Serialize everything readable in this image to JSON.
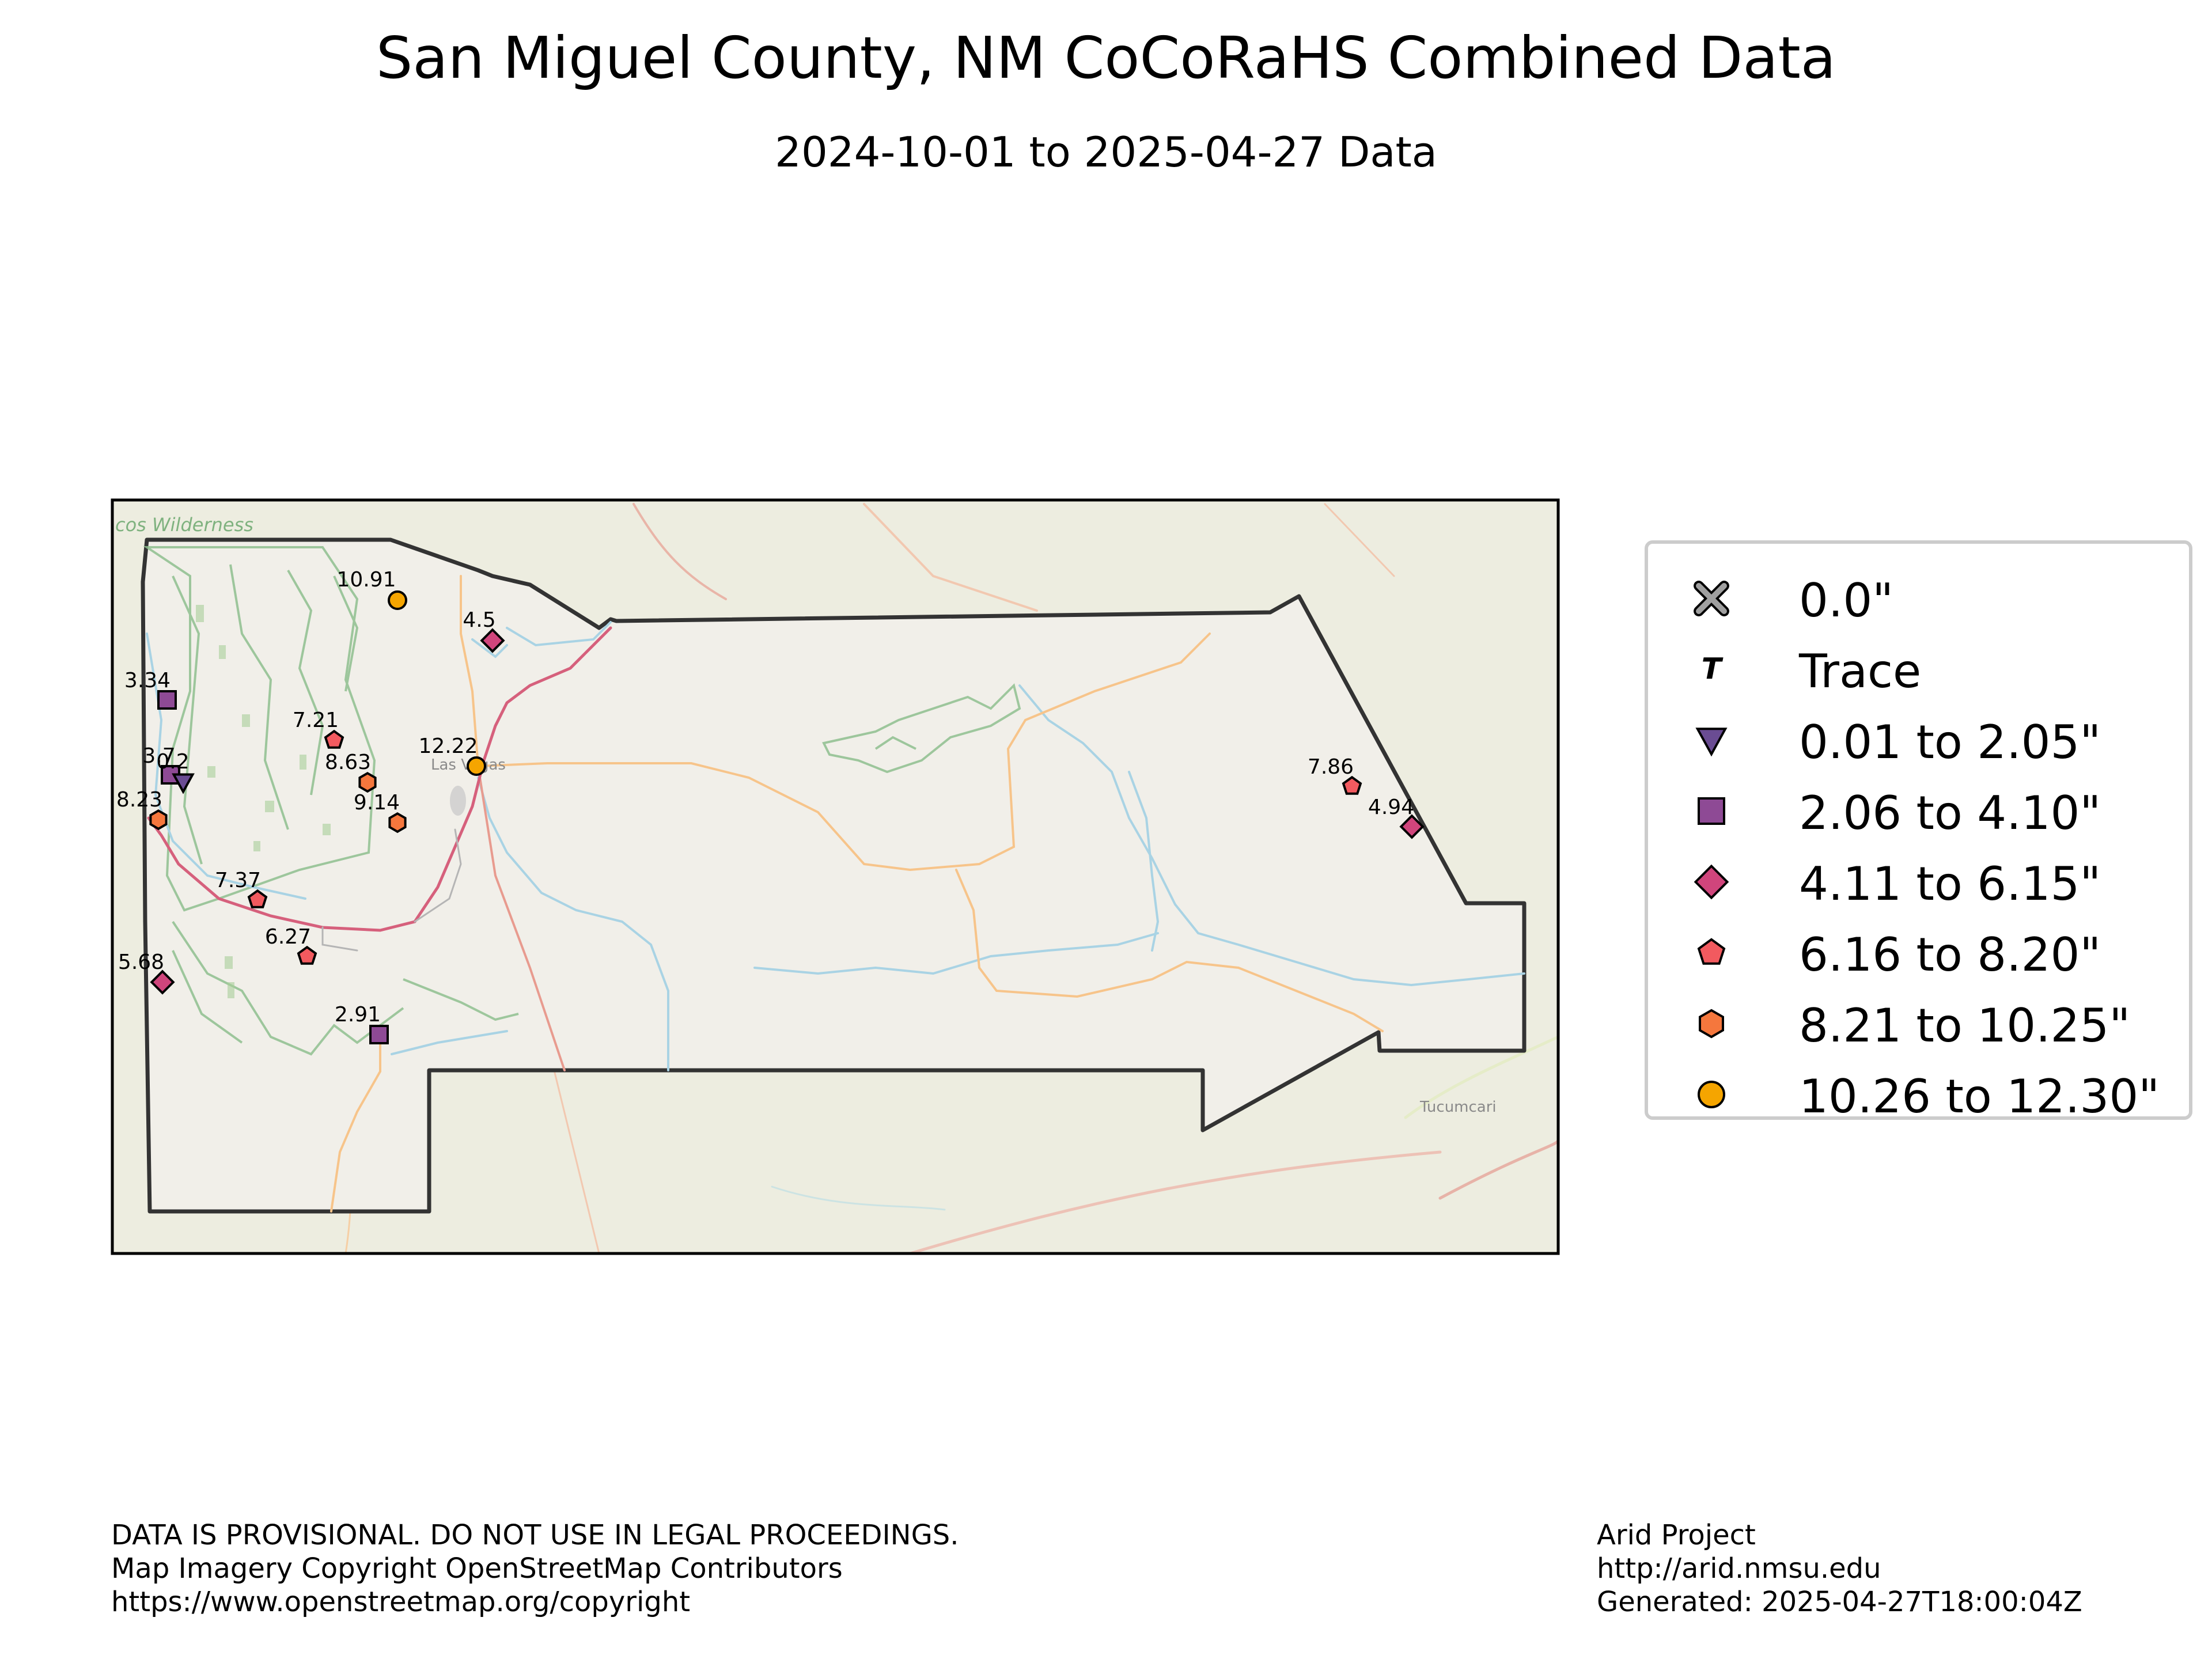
{
  "header": {
    "title": "San Miguel County, NM CoCoRaHS Combined Data",
    "subtitle": "2024-10-01 to 2025-04-27 Data"
  },
  "map": {
    "base_labels": {
      "wilderness": "cos Wilderness",
      "city": "Las Vegas",
      "town": "Tucumcari"
    },
    "colors": {
      "background": "#edede0",
      "county_fill": "#f1efe9",
      "county_border": "#333333",
      "forest": "#8fc08f",
      "water": "#a9d3e4",
      "road_minor": "#f7c48a",
      "road_major": "#e89b8f",
      "interstate": "#d6607c"
    }
  },
  "legend": {
    "items": [
      {
        "label": "0.0\"",
        "shape": "x-icon",
        "color": "#a0a0a0"
      },
      {
        "label": "Trace",
        "shape": "trace-t-icon",
        "color": "#000000"
      },
      {
        "label": "0.01 to 2.05\"",
        "shape": "triangle-down-icon",
        "color": "#6a4c93"
      },
      {
        "label": "2.06 to 4.10\"",
        "shape": "square-icon",
        "color": "#8e4a95"
      },
      {
        "label": "4.11 to 6.15\"",
        "shape": "diamond-icon",
        "color": "#d0457c"
      },
      {
        "label": "6.16 to 8.20\"",
        "shape": "pentagon-icon",
        "color": "#f25a5f"
      },
      {
        "label": "8.21 to 10.25\"",
        "shape": "hexagon-icon",
        "color": "#f5773d"
      },
      {
        "label": "10.26 to 12.30\"",
        "shape": "circle-icon",
        "color": "#f5a500"
      }
    ]
  },
  "stations": [
    {
      "value": "10.91",
      "category": 7
    },
    {
      "value": "4.5",
      "category": 4
    },
    {
      "value": "3.34",
      "category": 3
    },
    {
      "value": "7.21",
      "category": 5
    },
    {
      "value": "12.22",
      "category": 7
    },
    {
      "value": "8.63",
      "category": 6
    },
    {
      "value": "3.7",
      "category": 3
    },
    {
      "value": "0.2",
      "category": 2
    },
    {
      "value": "8.23",
      "category": 6
    },
    {
      "value": "9.14",
      "category": 6
    },
    {
      "value": "7.37",
      "category": 5
    },
    {
      "value": "6.27",
      "category": 5
    },
    {
      "value": "5.68",
      "category": 4
    },
    {
      "value": "2.91",
      "category": 3
    },
    {
      "value": "7.86",
      "category": 5
    },
    {
      "value": "4.94",
      "category": 4
    }
  ],
  "footer": {
    "left": [
      "DATA IS PROVISIONAL. DO NOT USE IN LEGAL PROCEEDINGS.",
      "Map Imagery Copyright OpenStreetMap Contributors",
      "https://www.openstreetmap.org/copyright"
    ],
    "right": [
      "Arid Project",
      "http://arid.nmsu.edu",
      "Generated: 2025-04-27T18:00:04Z"
    ]
  }
}
